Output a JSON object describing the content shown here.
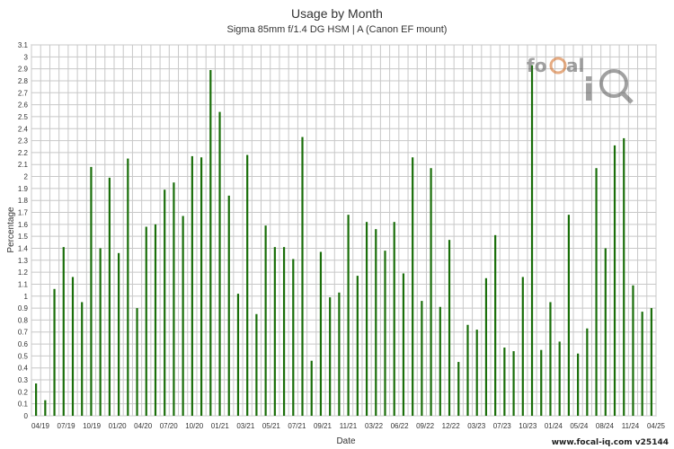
{
  "chart_data": {
    "type": "bar",
    "title": "Usage by Month",
    "subtitle": "Sigma 85mm f/1.4 DG HSM | A (Canon EF mount)",
    "xlabel": "Date",
    "ylabel": "Percentage",
    "ylim": [
      0,
      3.1
    ],
    "ytick_step": 0.1,
    "grid": true,
    "bar_color": "#1a6e0a",
    "x_tick_labels": [
      "04/19",
      "07/19",
      "10/19",
      "01/20",
      "04/20",
      "07/20",
      "10/20",
      "01/21",
      "03/21",
      "05/21",
      "07/21",
      "09/21",
      "11/21",
      "03/22",
      "06/22",
      "09/22",
      "12/22",
      "03/23",
      "07/23",
      "10/23",
      "01/24",
      "05/24",
      "08/24",
      "11/24",
      "04/25"
    ],
    "values": [
      0.27,
      0.13,
      1.06,
      1.41,
      1.16,
      0.95,
      2.08,
      1.4,
      1.99,
      1.36,
      2.15,
      0.9,
      1.58,
      1.6,
      1.89,
      1.95,
      1.67,
      2.17,
      2.16,
      2.89,
      2.54,
      1.84,
      1.02,
      2.18,
      0.85,
      1.59,
      1.41,
      1.41,
      1.31,
      2.33,
      0.46,
      1.37,
      0.99,
      1.03,
      1.68,
      1.17,
      1.62,
      1.56,
      1.38,
      1.62,
      1.19,
      2.16,
      0.96,
      2.07,
      0.91,
      1.47,
      0.45,
      0.76,
      0.72,
      1.15,
      1.51,
      0.57,
      0.54,
      1.16,
      2.93,
      0.55,
      0.95,
      0.62,
      1.68,
      0.52,
      0.73,
      2.07,
      1.4,
      2.26,
      2.32,
      1.09,
      0.87,
      0.9
    ]
  },
  "logo": {
    "text": "focal iq",
    "colors": {
      "dark": "#555555",
      "accent": "#d2691e"
    }
  },
  "footer": {
    "brand": "www.focal-iq.com  v25144"
  }
}
